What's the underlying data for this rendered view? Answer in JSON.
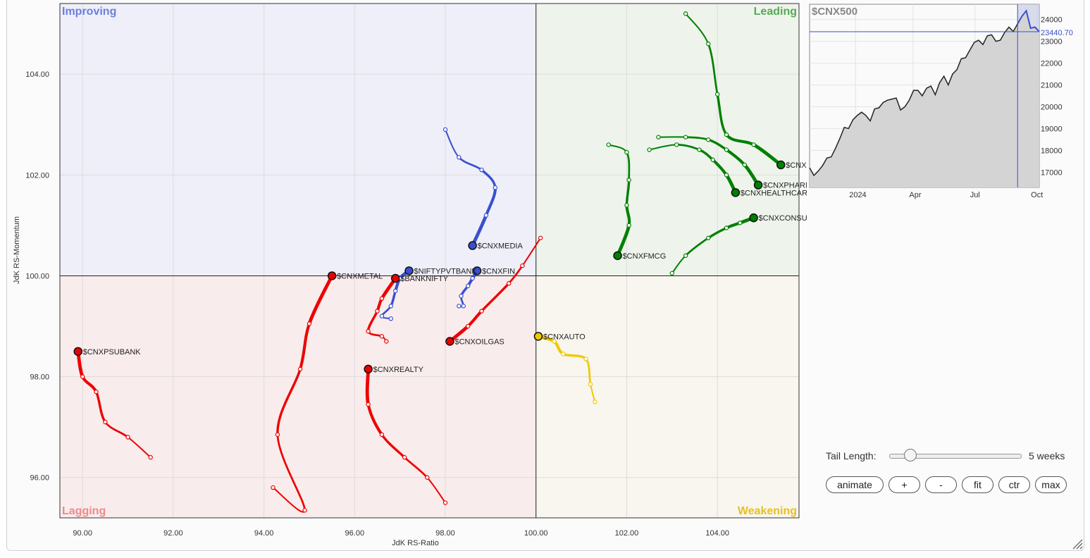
{
  "chart_data": [
    {
      "type": "scatter",
      "subtype": "relative-rotation-graph",
      "xlabel": "JdK RS-Ratio",
      "ylabel": "JdK RS-Momentum",
      "xlim": [
        89.5,
        105.8
      ],
      "ylim": [
        95.2,
        105.4
      ],
      "x_ticks": [
        "90.00",
        "92.00",
        "94.00",
        "96.00",
        "98.00",
        "100.00",
        "102.00",
        "104.00"
      ],
      "x_tick_values": [
        90,
        92,
        94,
        96,
        98,
        100,
        102,
        104
      ],
      "y_ticks": [
        "96.00",
        "98.00",
        "100.00",
        "102.00",
        "104.00"
      ],
      "y_tick_values": [
        96,
        98,
        100,
        102,
        104
      ],
      "center": [
        100,
        100
      ],
      "grid": true,
      "quadrants": [
        {
          "name": "Improving",
          "position": "top-left",
          "color": "#6b7fe0",
          "fill": "#eeeff8"
        },
        {
          "name": "Leading",
          "position": "top-right",
          "color": "#55aa55",
          "fill": "#eef4ec"
        },
        {
          "name": "Lagging",
          "position": "bottom-left",
          "color": "#f08a8a",
          "fill": "#f9ecec"
        },
        {
          "name": "Weakening",
          "position": "bottom-right",
          "color": "#e6c020",
          "fill": "#f8f6ee"
        }
      ],
      "series": [
        {
          "name": "$CNXIT",
          "color": "#008000",
          "points": [
            [
              103.3,
              105.2
            ],
            [
              103.8,
              104.6
            ],
            [
              104.0,
              103.6
            ],
            [
              104.2,
              102.8
            ],
            [
              104.8,
              102.6
            ],
            [
              105.4,
              102.2
            ]
          ]
        },
        {
          "name": "$CNXPHARMA",
          "color": "#008000",
          "points": [
            [
              102.7,
              102.75
            ],
            [
              103.3,
              102.75
            ],
            [
              103.8,
              102.7
            ],
            [
              104.2,
              102.5
            ],
            [
              104.6,
              102.2
            ],
            [
              104.9,
              101.8
            ]
          ]
        },
        {
          "name": "$CNXHEALTHCARE",
          "color": "#008000",
          "points": [
            [
              102.5,
              102.5
            ],
            [
              103.1,
              102.6
            ],
            [
              103.6,
              102.5
            ],
            [
              103.9,
              102.3
            ],
            [
              104.2,
              102.0
            ],
            [
              104.4,
              101.65
            ]
          ]
        },
        {
          "name": "$CNXCONSUMERDURABLES",
          "color": "#008000",
          "points": [
            [
              103.0,
              100.05
            ],
            [
              103.3,
              100.4
            ],
            [
              103.8,
              100.75
            ],
            [
              104.2,
              100.95
            ],
            [
              104.5,
              101.05
            ],
            [
              104.8,
              101.15
            ]
          ]
        },
        {
          "name": "$CNXFMCG",
          "color": "#008000",
          "points": [
            [
              101.6,
              102.6
            ],
            [
              102.0,
              102.45
            ],
            [
              102.05,
              101.9
            ],
            [
              102.0,
              101.4
            ],
            [
              102.05,
              101.0
            ],
            [
              101.8,
              100.4
            ]
          ]
        },
        {
          "name": "$CNXMEDIA",
          "color": "#3a4fd0",
          "points": [
            [
              98.0,
              102.9
            ],
            [
              98.3,
              102.35
            ],
            [
              98.8,
              102.1
            ],
            [
              99.1,
              101.75
            ],
            [
              98.9,
              101.2
            ],
            [
              98.6,
              100.6
            ]
          ]
        },
        {
          "name": "$CNXFIN",
          "color": "#3a4fd0",
          "points": [
            [
              98.3,
              99.4
            ],
            [
              98.4,
              99.4
            ],
            [
              98.35,
              99.6
            ],
            [
              98.5,
              99.8
            ],
            [
              98.6,
              99.95
            ],
            [
              98.7,
              100.1
            ]
          ]
        },
        {
          "name": "$NIFTYPVTBANK",
          "color": "#3a4fd0",
          "points": [
            [
              96.8,
              99.15
            ],
            [
              96.6,
              99.2
            ],
            [
              96.8,
              99.4
            ],
            [
              96.9,
              99.7
            ],
            [
              97.0,
              99.95
            ],
            [
              97.2,
              100.1
            ]
          ]
        },
        {
          "name": "$CNXMETAL",
          "color": "#ee0000",
          "points": [
            [
              94.2,
              95.8
            ],
            [
              94.9,
              95.35
            ],
            [
              94.3,
              96.85
            ],
            [
              94.8,
              98.15
            ],
            [
              95.0,
              99.05
            ],
            [
              95.5,
              100.0
            ]
          ]
        },
        {
          "name": "$BANKNIFTY",
          "color": "#ee0000",
          "points": [
            [
              96.7,
              98.7
            ],
            [
              96.6,
              98.8
            ],
            [
              96.3,
              98.9
            ],
            [
              96.5,
              99.3
            ],
            [
              96.6,
              99.55
            ],
            [
              96.9,
              99.95
            ]
          ]
        },
        {
          "name": "$CNXOILGAS",
          "color": "#ee0000",
          "points": [
            [
              100.1,
              100.75
            ],
            [
              99.7,
              100.2
            ],
            [
              99.4,
              99.85
            ],
            [
              98.8,
              99.3
            ],
            [
              98.5,
              99.0
            ],
            [
              98.1,
              98.7
            ]
          ]
        },
        {
          "name": "$CNXREALTY",
          "color": "#ee0000",
          "points": [
            [
              98.0,
              95.5
            ],
            [
              97.6,
              96.0
            ],
            [
              97.1,
              96.4
            ],
            [
              96.6,
              96.85
            ],
            [
              96.3,
              97.45
            ],
            [
              96.3,
              98.15
            ]
          ]
        },
        {
          "name": "$CNXPSUBANK",
          "color": "#ee0000",
          "points": [
            [
              91.5,
              96.4
            ],
            [
              91.0,
              96.8
            ],
            [
              90.5,
              97.1
            ],
            [
              90.3,
              97.7
            ],
            [
              90.0,
              98.0
            ],
            [
              89.9,
              98.5
            ]
          ]
        },
        {
          "name": "$CNXAUTO",
          "color": "#f0c800",
          "points": [
            [
              101.3,
              97.5
            ],
            [
              101.2,
              97.85
            ],
            [
              101.1,
              98.35
            ],
            [
              100.6,
              98.45
            ],
            [
              100.4,
              98.7
            ],
            [
              100.05,
              98.8
            ]
          ]
        }
      ]
    },
    {
      "type": "area",
      "title": "$CNX500",
      "x_ticks": [
        "2024",
        "Apr",
        "Jul",
        "Oct"
      ],
      "y_ticks": [
        "17000",
        "18000",
        "19000",
        "20000",
        "21000",
        "22000",
        "23000",
        "24000"
      ],
      "y_tick_values": [
        17000,
        18000,
        19000,
        20000,
        21000,
        22000,
        23000,
        24000
      ],
      "ylim": [
        16300,
        24700
      ],
      "current_value": 23440.7,
      "current_label": "23440.70",
      "line_color": "#222222",
      "highlight_color": "#3a4fd0",
      "highlight_start_index": 48,
      "values": [
        17200,
        16850,
        17050,
        17300,
        17650,
        17700,
        18100,
        18550,
        19050,
        19000,
        19400,
        19600,
        19750,
        19600,
        19350,
        19900,
        19950,
        20200,
        20300,
        20350,
        20400,
        19850,
        20000,
        20300,
        20750,
        20750,
        20500,
        20850,
        20950,
        20550,
        21100,
        21400,
        21000,
        21500,
        21700,
        22200,
        22250,
        22600,
        22950,
        23050,
        22850,
        23250,
        23300,
        23000,
        23050,
        23400,
        23650,
        23450,
        23800,
        24150,
        24400,
        23600,
        23650,
        23440.7
      ]
    }
  ],
  "controls": {
    "tail_length_label": "Tail Length:",
    "tail_length_value": "5 weeks",
    "tail_length_weeks": 5,
    "tail_length_fraction": 0.15,
    "buttons": {
      "animate": "animate",
      "plus": "+",
      "minus": "-",
      "fit": "fit",
      "ctr": "ctr",
      "max": "max"
    }
  }
}
